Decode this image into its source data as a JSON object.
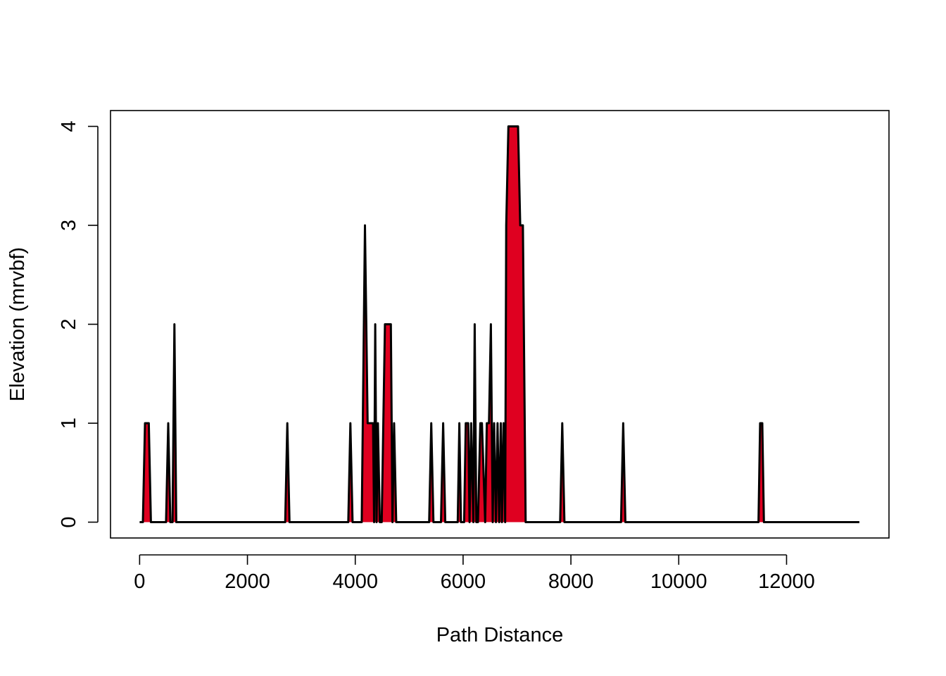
{
  "chart_data": {
    "type": "area",
    "title": "",
    "xlabel": "Path Distance",
    "ylabel": "Elevation  (mrvbf)",
    "xlim": [
      -540,
      13900
    ],
    "ylim": [
      -0.16,
      4.16
    ],
    "x_ticks": [
      0,
      2000,
      4000,
      6000,
      8000,
      10000,
      12000
    ],
    "x_tick_labels": [
      "0",
      "2000",
      "4000",
      "6000",
      "8000",
      "10000",
      "12000"
    ],
    "y_ticks": [
      0,
      1,
      2,
      3,
      4
    ],
    "y_tick_labels": [
      "0",
      "1",
      "2",
      "3",
      "4"
    ],
    "grid": false,
    "legend": "none",
    "fill_color": "#DF0020",
    "line_color": "#000000",
    "x": [
      0,
      60,
      100,
      170,
      210,
      490,
      530,
      570,
      610,
      645,
      680,
      2700,
      2740,
      2780,
      3870,
      3910,
      3950,
      4120,
      4180,
      4230,
      4280,
      4330,
      4350,
      4370,
      4395,
      4420,
      4455,
      4490,
      4550,
      4570,
      4660,
      4690,
      4720,
      4760,
      5370,
      5410,
      5450,
      5590,
      5630,
      5670,
      5900,
      5930,
      5960,
      6020,
      6050,
      6095,
      6120,
      6150,
      6190,
      6215,
      6245,
      6275,
      6320,
      6350,
      6410,
      6440,
      6480,
      6515,
      6550,
      6575,
      6610,
      6640,
      6670,
      6700,
      6720,
      6750,
      6780,
      6800,
      6840,
      6880,
      6920,
      7020,
      7060,
      7110,
      7160,
      7800,
      7840,
      7880,
      8930,
      8970,
      9010,
      11480,
      11510,
      11550,
      11580,
      13350
    ],
    "y": [
      0,
      0,
      1,
      1,
      0,
      0,
      1,
      0,
      0,
      2,
      0,
      0,
      1,
      0,
      0,
      1,
      0,
      0,
      3,
      1,
      1,
      1,
      0,
      2,
      0,
      1,
      0,
      0,
      2,
      2,
      2,
      0,
      1,
      0,
      0,
      1,
      0,
      0,
      1,
      0,
      0,
      1,
      0,
      0,
      1,
      1,
      0,
      1,
      0,
      2,
      0,
      0,
      1,
      1,
      0,
      1,
      1,
      2,
      0,
      1,
      0,
      1,
      0,
      1,
      0,
      1,
      0,
      3,
      4,
      4,
      4,
      4,
      3,
      3,
      0,
      0,
      1,
      0,
      0,
      1,
      0,
      0,
      1,
      1,
      0,
      0
    ]
  }
}
